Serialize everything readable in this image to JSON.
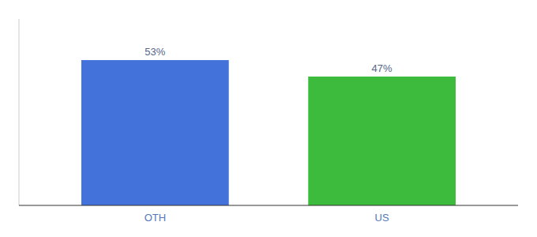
{
  "chart_data": {
    "type": "bar",
    "categories": [
      "OTH",
      "US"
    ],
    "values": [
      53,
      47
    ],
    "value_labels": [
      "53%",
      "47%"
    ],
    "colors": [
      "#4472db",
      "#3dbb3d"
    ],
    "ylim": [
      0,
      68
    ],
    "data_labels": true,
    "tick_labels": "x",
    "grid": false
  }
}
